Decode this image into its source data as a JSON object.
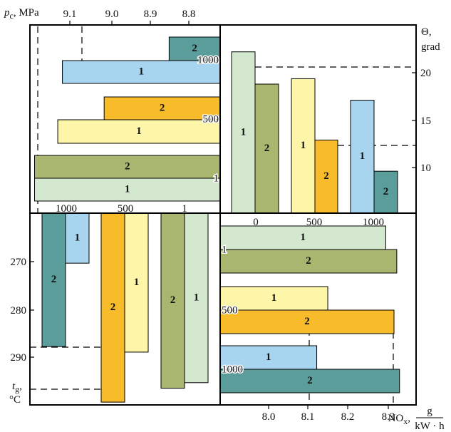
{
  "colors": {
    "mode1_green": "#d4e8cf",
    "mode2_green": "#a8b66f",
    "mode1_yellow": "#fdf6a8",
    "mode2_yellow": "#f8bb2a",
    "mode1_blue": "#a7d4ee",
    "mode2_blue": "#5b9d9a"
  },
  "axes": {
    "pc_label_main": "p",
    "pc_label_sub": "c",
    "pc_label_unit": ", MPa",
    "theta_label_1": "Θ,",
    "theta_label_2": "grad",
    "tg_label_main": "t",
    "tg_label_sub": "g",
    "tg_label_unit": "°C",
    "nox_label_main": "NO",
    "nox_label_sub": "x",
    "nox_unit_num": "g",
    "nox_unit_den": "kW · h",
    "pc_ticks": [
      "9.1",
      "9.0",
      "8.9",
      "8.8"
    ],
    "theta_ticks": [
      "20",
      "15",
      "10"
    ],
    "tg_ticks": [
      "270",
      "280",
      "290"
    ],
    "nox_ticks": [
      "8.0",
      "8.1",
      "8.2",
      "8.3"
    ],
    "load_ticks_top": [
      "0",
      "500",
      "1000"
    ],
    "load_ticks_left": [
      "1000",
      "500",
      "1"
    ],
    "inner_load_labels_tl": [
      "1000",
      "500",
      "1"
    ],
    "inner_load_labels_br": [
      "1",
      "500",
      "1000"
    ]
  },
  "chart_data": [
    {
      "type": "bar",
      "panel": "top-left",
      "orientation": "horizontal",
      "value_axis": "p_c, MPa (reversed)",
      "xlim": [
        9.13,
        8.72
      ],
      "bars": [
        {
          "label": "2",
          "load": "1000",
          "value": 8.83,
          "color": "mode2_blue"
        },
        {
          "label": "1",
          "load": "1000",
          "value": 9.06,
          "color": "mode1_blue"
        },
        {
          "label": "2",
          "load": "500",
          "value": 8.97,
          "color": "mode2_yellow"
        },
        {
          "label": "1",
          "load": "500",
          "value": 9.07,
          "color": "mode1_yellow"
        },
        {
          "label": "2",
          "load": "1",
          "value": 9.12,
          "color": "mode2_green"
        },
        {
          "label": "1",
          "load": "1",
          "value": 9.12,
          "color": "mode1_green"
        }
      ]
    },
    {
      "type": "bar",
      "panel": "top-right",
      "orientation": "vertical",
      "value_axis": "Θ, grad",
      "ylim": [
        5.5,
        23
      ],
      "bars": [
        {
          "label": "1",
          "load": "0",
          "value": 20.5,
          "color": "mode1_green"
        },
        {
          "label": "2",
          "load": "0",
          "value": 17.5,
          "color": "mode2_green"
        },
        {
          "label": "1",
          "load": "500",
          "value": 18.0,
          "color": "mode1_yellow"
        },
        {
          "label": "2",
          "load": "500",
          "value": 12.3,
          "color": "mode2_yellow"
        },
        {
          "label": "1",
          "load": "1000",
          "value": 16.0,
          "color": "mode1_blue"
        },
        {
          "label": "2",
          "load": "1000",
          "value": 9.4,
          "color": "mode2_blue"
        }
      ]
    },
    {
      "type": "bar",
      "panel": "bottom-left",
      "orientation": "vertical-downward",
      "value_axis": "t_g, °C",
      "ylim": [
        262.5,
        297
      ],
      "bars": [
        {
          "label": "2",
          "load": "1000",
          "value": 286.5,
          "color": "mode2_blue"
        },
        {
          "label": "1",
          "load": "1000",
          "value": 271.5,
          "color": "mode1_blue"
        },
        {
          "label": "2",
          "load": "500",
          "value": 296.5,
          "color": "mode2_yellow"
        },
        {
          "label": "1",
          "load": "500",
          "value": 287.5,
          "color": "mode1_yellow"
        },
        {
          "label": "2",
          "load": "1",
          "value": 294.0,
          "color": "mode2_green"
        },
        {
          "label": "1",
          "load": "1",
          "value": 293.0,
          "color": "mode1_green"
        }
      ]
    },
    {
      "type": "bar",
      "panel": "bottom-right",
      "orientation": "horizontal",
      "value_axis": "NO_x, g/(kW·h)",
      "xlim": [
        7.72,
        8.43
      ],
      "bars": [
        {
          "label": "1",
          "load": "1",
          "value": 8.32,
          "color": "mode1_green"
        },
        {
          "label": "2",
          "load": "1",
          "value": 8.36,
          "color": "mode2_green"
        },
        {
          "label": "1",
          "load": "500",
          "value": 8.11,
          "color": "mode1_yellow"
        },
        {
          "label": "2",
          "load": "500",
          "value": 8.35,
          "color": "mode2_yellow"
        },
        {
          "label": "1",
          "load": "1000",
          "value": 8.07,
          "color": "mode1_blue"
        },
        {
          "label": "2",
          "load": "1000",
          "value": 8.37,
          "color": "mode2_blue"
        }
      ]
    }
  ]
}
